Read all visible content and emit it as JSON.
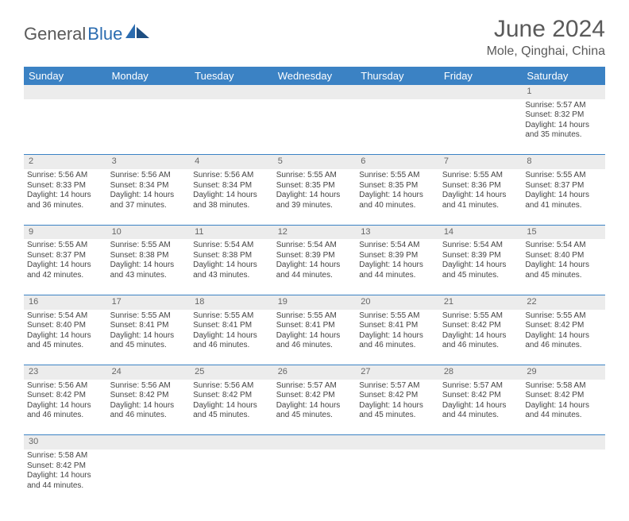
{
  "brand": {
    "main": "General",
    "sub": "Blue"
  },
  "title": "June 2024",
  "location": "Mole, Qinghai, China",
  "colors": {
    "header_bg": "#3b82c4",
    "header_fg": "#ffffff",
    "daynum_bg": "#ececec",
    "row_divider": "#3b82c4",
    "text": "#444444",
    "brand_grey": "#5a5a5a",
    "brand_blue": "#2b6cb0"
  },
  "weekdays": [
    "Sunday",
    "Monday",
    "Tuesday",
    "Wednesday",
    "Thursday",
    "Friday",
    "Saturday"
  ],
  "weeks": [
    [
      null,
      null,
      null,
      null,
      null,
      null,
      {
        "n": "1",
        "sr": "Sunrise: 5:57 AM",
        "ss": "Sunset: 8:32 PM",
        "d1": "Daylight: 14 hours",
        "d2": "and 35 minutes."
      }
    ],
    [
      {
        "n": "2",
        "sr": "Sunrise: 5:56 AM",
        "ss": "Sunset: 8:33 PM",
        "d1": "Daylight: 14 hours",
        "d2": "and 36 minutes."
      },
      {
        "n": "3",
        "sr": "Sunrise: 5:56 AM",
        "ss": "Sunset: 8:34 PM",
        "d1": "Daylight: 14 hours",
        "d2": "and 37 minutes."
      },
      {
        "n": "4",
        "sr": "Sunrise: 5:56 AM",
        "ss": "Sunset: 8:34 PM",
        "d1": "Daylight: 14 hours",
        "d2": "and 38 minutes."
      },
      {
        "n": "5",
        "sr": "Sunrise: 5:55 AM",
        "ss": "Sunset: 8:35 PM",
        "d1": "Daylight: 14 hours",
        "d2": "and 39 minutes."
      },
      {
        "n": "6",
        "sr": "Sunrise: 5:55 AM",
        "ss": "Sunset: 8:35 PM",
        "d1": "Daylight: 14 hours",
        "d2": "and 40 minutes."
      },
      {
        "n": "7",
        "sr": "Sunrise: 5:55 AM",
        "ss": "Sunset: 8:36 PM",
        "d1": "Daylight: 14 hours",
        "d2": "and 41 minutes."
      },
      {
        "n": "8",
        "sr": "Sunrise: 5:55 AM",
        "ss": "Sunset: 8:37 PM",
        "d1": "Daylight: 14 hours",
        "d2": "and 41 minutes."
      }
    ],
    [
      {
        "n": "9",
        "sr": "Sunrise: 5:55 AM",
        "ss": "Sunset: 8:37 PM",
        "d1": "Daylight: 14 hours",
        "d2": "and 42 minutes."
      },
      {
        "n": "10",
        "sr": "Sunrise: 5:55 AM",
        "ss": "Sunset: 8:38 PM",
        "d1": "Daylight: 14 hours",
        "d2": "and 43 minutes."
      },
      {
        "n": "11",
        "sr": "Sunrise: 5:54 AM",
        "ss": "Sunset: 8:38 PM",
        "d1": "Daylight: 14 hours",
        "d2": "and 43 minutes."
      },
      {
        "n": "12",
        "sr": "Sunrise: 5:54 AM",
        "ss": "Sunset: 8:39 PM",
        "d1": "Daylight: 14 hours",
        "d2": "and 44 minutes."
      },
      {
        "n": "13",
        "sr": "Sunrise: 5:54 AM",
        "ss": "Sunset: 8:39 PM",
        "d1": "Daylight: 14 hours",
        "d2": "and 44 minutes."
      },
      {
        "n": "14",
        "sr": "Sunrise: 5:54 AM",
        "ss": "Sunset: 8:39 PM",
        "d1": "Daylight: 14 hours",
        "d2": "and 45 minutes."
      },
      {
        "n": "15",
        "sr": "Sunrise: 5:54 AM",
        "ss": "Sunset: 8:40 PM",
        "d1": "Daylight: 14 hours",
        "d2": "and 45 minutes."
      }
    ],
    [
      {
        "n": "16",
        "sr": "Sunrise: 5:54 AM",
        "ss": "Sunset: 8:40 PM",
        "d1": "Daylight: 14 hours",
        "d2": "and 45 minutes."
      },
      {
        "n": "17",
        "sr": "Sunrise: 5:55 AM",
        "ss": "Sunset: 8:41 PM",
        "d1": "Daylight: 14 hours",
        "d2": "and 45 minutes."
      },
      {
        "n": "18",
        "sr": "Sunrise: 5:55 AM",
        "ss": "Sunset: 8:41 PM",
        "d1": "Daylight: 14 hours",
        "d2": "and 46 minutes."
      },
      {
        "n": "19",
        "sr": "Sunrise: 5:55 AM",
        "ss": "Sunset: 8:41 PM",
        "d1": "Daylight: 14 hours",
        "d2": "and 46 minutes."
      },
      {
        "n": "20",
        "sr": "Sunrise: 5:55 AM",
        "ss": "Sunset: 8:41 PM",
        "d1": "Daylight: 14 hours",
        "d2": "and 46 minutes."
      },
      {
        "n": "21",
        "sr": "Sunrise: 5:55 AM",
        "ss": "Sunset: 8:42 PM",
        "d1": "Daylight: 14 hours",
        "d2": "and 46 minutes."
      },
      {
        "n": "22",
        "sr": "Sunrise: 5:55 AM",
        "ss": "Sunset: 8:42 PM",
        "d1": "Daylight: 14 hours",
        "d2": "and 46 minutes."
      }
    ],
    [
      {
        "n": "23",
        "sr": "Sunrise: 5:56 AM",
        "ss": "Sunset: 8:42 PM",
        "d1": "Daylight: 14 hours",
        "d2": "and 46 minutes."
      },
      {
        "n": "24",
        "sr": "Sunrise: 5:56 AM",
        "ss": "Sunset: 8:42 PM",
        "d1": "Daylight: 14 hours",
        "d2": "and 46 minutes."
      },
      {
        "n": "25",
        "sr": "Sunrise: 5:56 AM",
        "ss": "Sunset: 8:42 PM",
        "d1": "Daylight: 14 hours",
        "d2": "and 45 minutes."
      },
      {
        "n": "26",
        "sr": "Sunrise: 5:57 AM",
        "ss": "Sunset: 8:42 PM",
        "d1": "Daylight: 14 hours",
        "d2": "and 45 minutes."
      },
      {
        "n": "27",
        "sr": "Sunrise: 5:57 AM",
        "ss": "Sunset: 8:42 PM",
        "d1": "Daylight: 14 hours",
        "d2": "and 45 minutes."
      },
      {
        "n": "28",
        "sr": "Sunrise: 5:57 AM",
        "ss": "Sunset: 8:42 PM",
        "d1": "Daylight: 14 hours",
        "d2": "and 44 minutes."
      },
      {
        "n": "29",
        "sr": "Sunrise: 5:58 AM",
        "ss": "Sunset: 8:42 PM",
        "d1": "Daylight: 14 hours",
        "d2": "and 44 minutes."
      }
    ],
    [
      {
        "n": "30",
        "sr": "Sunrise: 5:58 AM",
        "ss": "Sunset: 8:42 PM",
        "d1": "Daylight: 14 hours",
        "d2": "and 44 minutes."
      },
      null,
      null,
      null,
      null,
      null,
      null
    ]
  ]
}
